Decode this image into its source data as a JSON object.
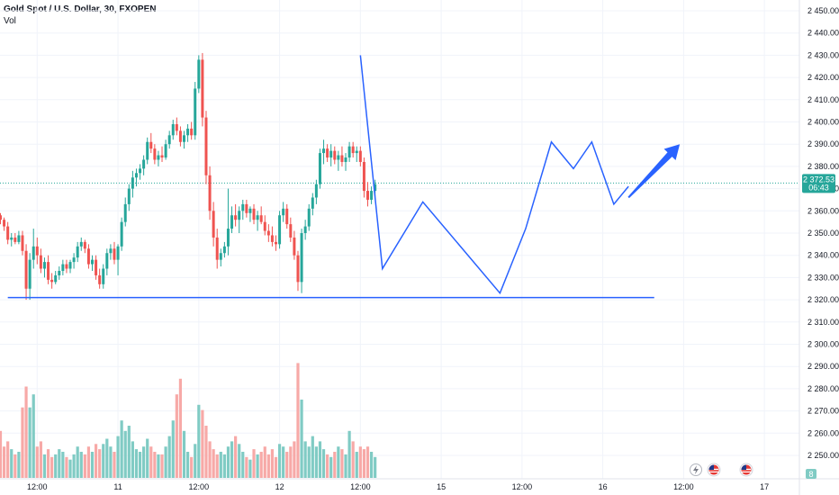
{
  "header": {
    "title": "Gold Spot / U.S. Dollar, 30, FXOPEN",
    "volume_label": "Vol"
  },
  "colors": {
    "up": "#26a69a",
    "down": "#ef5350",
    "vol_up": "#80cbc4",
    "vol_down": "#f7a9a7",
    "pattern_line": "#2962ff",
    "price_line": "#26a69a",
    "price_tag": "#26a69a"
  },
  "icons": [
    "flag-us-icon",
    "flag-us-icon",
    "lightning-icon"
  ],
  "chart_data": {
    "type": "candlestick",
    "title": "Gold Spot / U.S. Dollar, 30, FXOPEN",
    "y_ticks": [
      2450,
      2440,
      2430,
      2420,
      2410,
      2400,
      2390,
      2380,
      2370,
      2360,
      2350,
      2340,
      2330,
      2320,
      2310,
      2300,
      2290,
      2280,
      2270,
      2260,
      2250
    ],
    "y_tick_labels": [
      "2 450.00",
      "2 440.00",
      "2 430.00",
      "2 420.00",
      "2 410.00",
      "2 400.00",
      "2 390.00",
      "2 380.00",
      "2 370.00",
      "2 360.00",
      "2 350.00",
      "2 340.00",
      "2 330.00",
      "2 320.00",
      "2 310.00",
      "2 300.00",
      "2 290.00",
      "2 280.00",
      "2 270.00",
      "2 260.00",
      "2 250.00"
    ],
    "ylim": [
      2245,
      2456
    ],
    "x_ticks": [
      {
        "label": "12:00",
        "bar": 10
      },
      {
        "label": "11",
        "bar": 32
      },
      {
        "label": "12:00",
        "bar": 54
      },
      {
        "label": "12",
        "bar": 76
      },
      {
        "label": "12:00",
        "bar": 98
      },
      {
        "label": "15",
        "bar": 120
      },
      {
        "label": "12:00",
        "bar": 142
      },
      {
        "label": "16",
        "bar": 164
      },
      {
        "label": "12:00",
        "bar": 186
      },
      {
        "label": "17",
        "bar": 208
      }
    ],
    "current_price": 2372.53,
    "price_tag": {
      "price": "2 372.53",
      "countdown": "06:43"
    },
    "volume_tag": "8",
    "candles": [
      [
        2358,
        2359,
        2354,
        2356,
        18
      ],
      [
        2356,
        2357,
        2351,
        2353,
        12
      ],
      [
        2353,
        2355,
        2345,
        2347,
        14
      ],
      [
        2347,
        2350,
        2344,
        2348,
        11
      ],
      [
        2348,
        2350,
        2345,
        2346,
        9
      ],
      [
        2346,
        2351,
        2345,
        2349,
        10
      ],
      [
        2349,
        2351,
        2340,
        2342,
        27
      ],
      [
        2342,
        2345,
        2320,
        2325,
        35
      ],
      [
        2325,
        2341,
        2320,
        2338,
        27
      ],
      [
        2338,
        2352,
        2334,
        2344,
        32
      ],
      [
        2344,
        2348,
        2336,
        2340,
        12
      ],
      [
        2340,
        2343,
        2332,
        2334,
        14
      ],
      [
        2334,
        2339,
        2330,
        2337,
        9
      ],
      [
        2337,
        2340,
        2327,
        2329,
        11
      ],
      [
        2329,
        2332,
        2325,
        2328,
        8
      ],
      [
        2328,
        2333,
        2327,
        2331,
        9
      ],
      [
        2331,
        2335,
        2329,
        2333,
        11
      ],
      [
        2333,
        2338,
        2331,
        2336,
        10
      ],
      [
        2336,
        2338,
        2332,
        2334,
        8
      ],
      [
        2334,
        2338,
        2332,
        2337,
        7
      ],
      [
        2337,
        2341,
        2334,
        2339,
        9
      ],
      [
        2339,
        2346,
        2337,
        2344,
        12
      ],
      [
        2344,
        2348,
        2342,
        2346,
        10
      ],
      [
        2346,
        2347,
        2341,
        2343,
        9
      ],
      [
        2343,
        2345,
        2334,
        2336,
        12
      ],
      [
        2336,
        2340,
        2333,
        2338,
        10
      ],
      [
        2338,
        2340,
        2329,
        2331,
        13
      ],
      [
        2331,
        2334,
        2325,
        2327,
        11
      ],
      [
        2327,
        2336,
        2325,
        2334,
        13
      ],
      [
        2334,
        2343,
        2331,
        2341,
        15
      ],
      [
        2341,
        2345,
        2338,
        2343,
        12
      ],
      [
        2343,
        2346,
        2336,
        2338,
        10
      ],
      [
        2338,
        2345,
        2331,
        2344,
        16
      ],
      [
        2344,
        2357,
        2342,
        2355,
        22
      ],
      [
        2355,
        2366,
        2353,
        2363,
        18
      ],
      [
        2363,
        2372,
        2360,
        2370,
        20
      ],
      [
        2370,
        2378,
        2366,
        2375,
        14
      ],
      [
        2375,
        2379,
        2371,
        2377,
        11
      ],
      [
        2377,
        2381,
        2374,
        2379,
        10
      ],
      [
        2379,
        2385,
        2376,
        2383,
        12
      ],
      [
        2383,
        2393,
        2381,
        2391,
        15
      ],
      [
        2391,
        2395,
        2386,
        2388,
        12
      ],
      [
        2388,
        2390,
        2381,
        2383,
        10
      ],
      [
        2383,
        2387,
        2380,
        2385,
        9
      ],
      [
        2385,
        2389,
        2382,
        2384,
        9
      ],
      [
        2384,
        2392,
        2383,
        2390,
        12
      ],
      [
        2390,
        2396,
        2388,
        2394,
        16
      ],
      [
        2394,
        2401,
        2392,
        2399,
        22
      ],
      [
        2399,
        2402,
        2394,
        2396,
        32
      ],
      [
        2396,
        2398,
        2389,
        2391,
        38
      ],
      [
        2391,
        2396,
        2388,
        2394,
        18
      ],
      [
        2394,
        2399,
        2391,
        2397,
        10
      ],
      [
        2397,
        2400,
        2392,
        2394,
        8
      ],
      [
        2394,
        2418,
        2392,
        2415,
        13
      ],
      [
        2415,
        2430,
        2413,
        2428,
        28
      ],
      [
        2428,
        2431,
        2398,
        2402,
        26
      ],
      [
        2402,
        2405,
        2372,
        2376,
        20
      ],
      [
        2376,
        2380,
        2356,
        2360,
        14
      ],
      [
        2360,
        2364,
        2344,
        2348,
        11
      ],
      [
        2348,
        2352,
        2334,
        2338,
        9
      ],
      [
        2338,
        2343,
        2335,
        2341,
        10
      ],
      [
        2341,
        2346,
        2339,
        2344,
        9
      ],
      [
        2344,
        2370,
        2340,
        2352,
        12
      ],
      [
        2352,
        2362,
        2350,
        2358,
        14
      ],
      [
        2358,
        2363,
        2353,
        2356,
        16
      ],
      [
        2356,
        2362,
        2350,
        2360,
        13
      ],
      [
        2360,
        2365,
        2356,
        2363,
        10
      ],
      [
        2363,
        2365,
        2357,
        2359,
        8
      ],
      [
        2359,
        2362,
        2355,
        2361,
        7
      ],
      [
        2361,
        2363,
        2354,
        2356,
        11
      ],
      [
        2356,
        2360,
        2351,
        2358,
        9
      ],
      [
        2358,
        2362,
        2354,
        2355,
        10
      ],
      [
        2355,
        2358,
        2349,
        2351,
        12
      ],
      [
        2351,
        2354,
        2346,
        2349,
        9
      ],
      [
        2349,
        2353,
        2344,
        2346,
        11
      ],
      [
        2346,
        2349,
        2342,
        2345,
        8
      ],
      [
        2345,
        2360,
        2343,
        2358,
        13
      ],
      [
        2358,
        2364,
        2355,
        2361,
        12
      ],
      [
        2361,
        2363,
        2352,
        2354,
        10
      ],
      [
        2354,
        2357,
        2346,
        2348,
        12
      ],
      [
        2348,
        2351,
        2338,
        2340,
        14
      ],
      [
        2340,
        2342,
        2324,
        2328,
        44
      ],
      [
        2328,
        2352,
        2323,
        2350,
        30
      ],
      [
        2350,
        2356,
        2347,
        2353,
        14
      ],
      [
        2353,
        2363,
        2351,
        2361,
        12
      ],
      [
        2361,
        2368,
        2358,
        2366,
        16
      ],
      [
        2366,
        2374,
        2363,
        2372,
        12
      ],
      [
        2372,
        2388,
        2370,
        2386,
        14
      ],
      [
        2386,
        2392,
        2381,
        2388,
        11
      ],
      [
        2388,
        2390,
        2382,
        2384,
        9
      ],
      [
        2384,
        2390,
        2380,
        2387,
        8
      ],
      [
        2387,
        2389,
        2381,
        2383,
        10
      ],
      [
        2383,
        2387,
        2378,
        2385,
        12
      ],
      [
        2385,
        2389,
        2380,
        2382,
        11
      ],
      [
        2382,
        2386,
        2378,
        2384,
        9
      ],
      [
        2384,
        2391,
        2382,
        2389,
        18
      ],
      [
        2389,
        2391,
        2384,
        2386,
        14
      ],
      [
        2386,
        2389,
        2382,
        2387,
        10
      ],
      [
        2387,
        2389,
        2380,
        2382,
        12
      ],
      [
        2382,
        2384,
        2366,
        2369,
        11
      ],
      [
        2369,
        2373,
        2362,
        2365,
        12
      ],
      [
        2365,
        2371,
        2363,
        2369,
        10
      ],
      [
        2369,
        2374,
        2366,
        2372,
        8
      ]
    ],
    "pattern_lines": [
      {
        "name": "support-line",
        "points": [
          [
            2,
            2321
          ],
          [
            178,
            2321
          ]
        ]
      },
      {
        "name": "zigzag-pattern",
        "points": [
          [
            98,
            2430
          ],
          [
            104,
            2334
          ],
          [
            115,
            2364
          ],
          [
            136,
            2323
          ],
          [
            143,
            2352
          ],
          [
            150,
            2391
          ],
          [
            156,
            2379
          ],
          [
            161,
            2391
          ],
          [
            167,
            2363
          ],
          [
            171,
            2371
          ]
        ]
      }
    ],
    "forecast_arrow": {
      "from": [
        171,
        2366
      ],
      "to": [
        183,
        2390
      ]
    }
  }
}
